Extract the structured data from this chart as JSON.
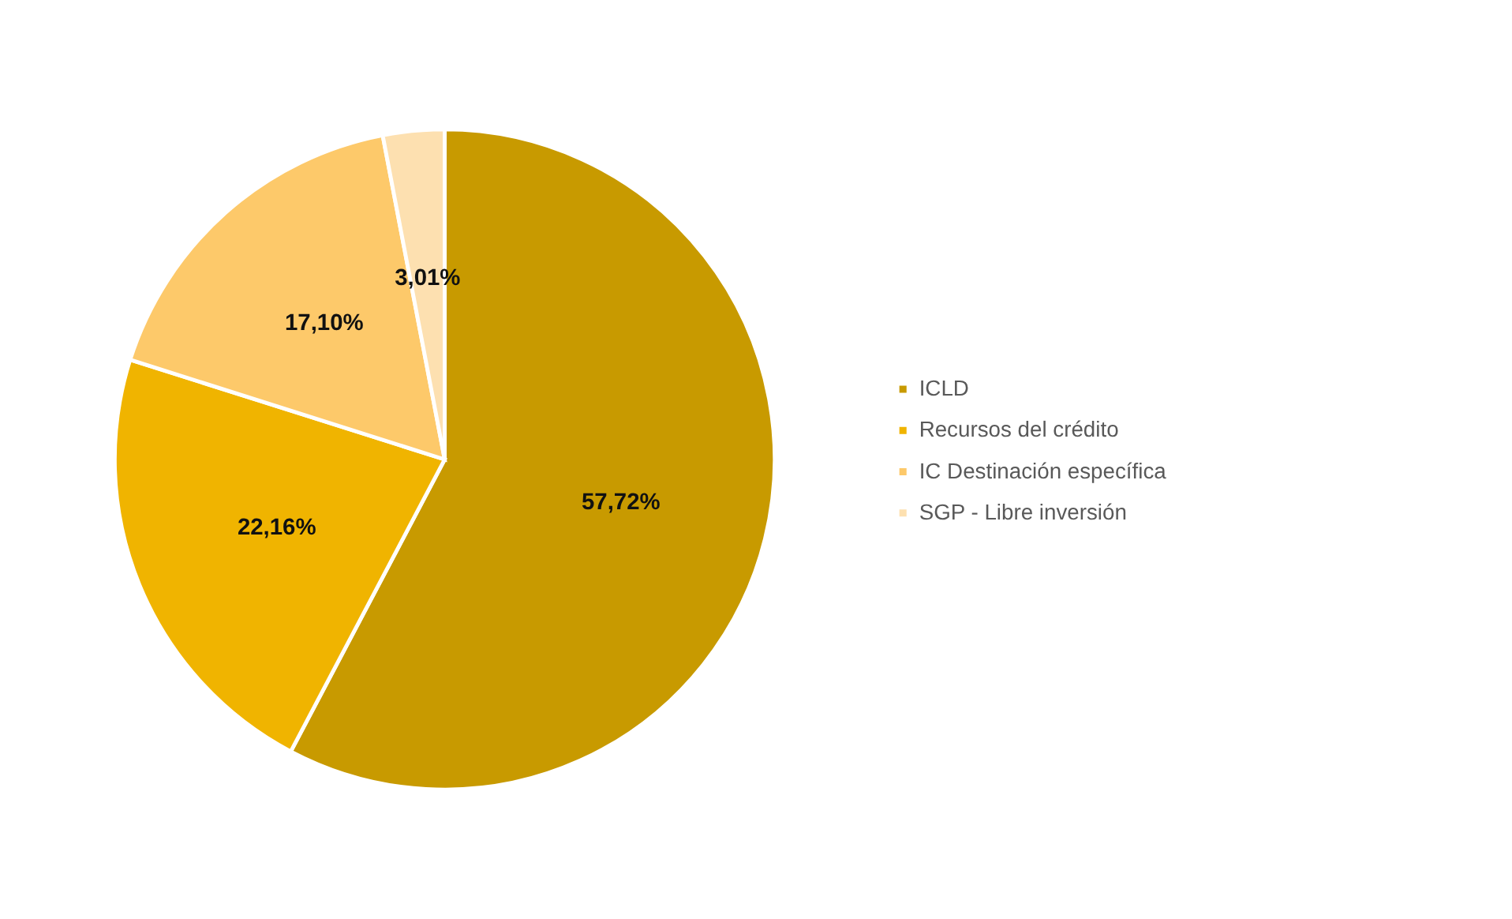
{
  "chart_data": {
    "type": "pie",
    "categories": [
      "ICLD",
      "Recursos del crédito",
      "IC Destinación específica",
      "SGP - Libre inversión"
    ],
    "values": [
      57.72,
      22.16,
      17.1,
      3.01
    ],
    "colors": [
      "#c89a00",
      "#f0b400",
      "#fdc96a",
      "#fde0b0"
    ],
    "value_labels": [
      "57,72%",
      "22,16%",
      "17,10%",
      "3,01%"
    ],
    "legend": "right"
  }
}
